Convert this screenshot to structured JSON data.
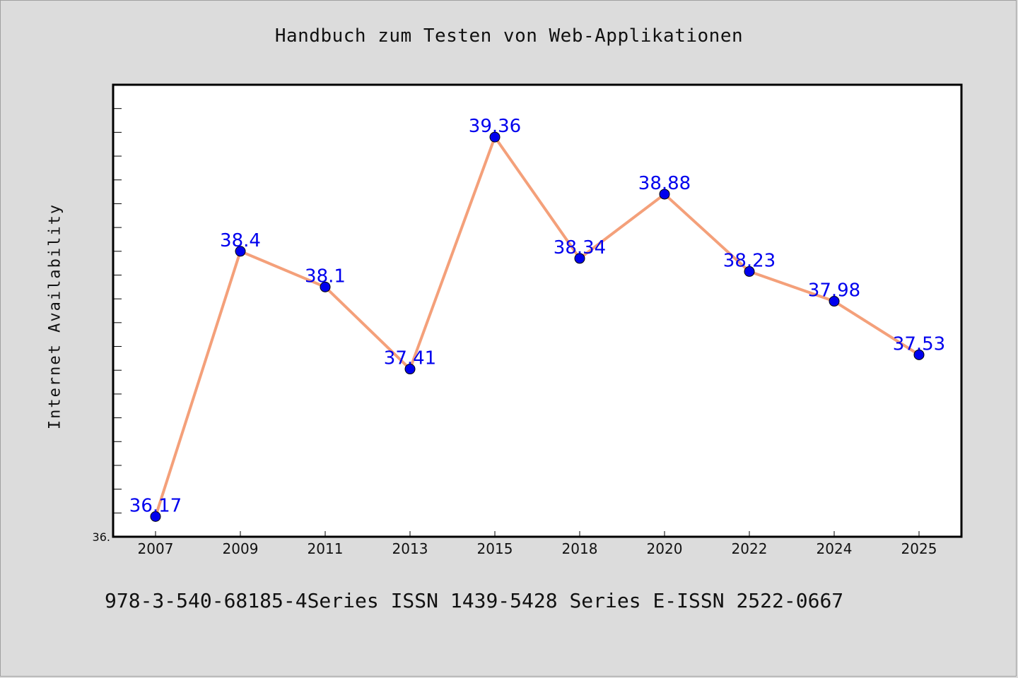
{
  "chart_data": {
    "type": "line",
    "title": "Handbuch zum Testen von Web-Applikationen",
    "xlabel": "",
    "ylabel": "Internet Availability",
    "categories": [
      "2007",
      "2009",
      "2011",
      "2013",
      "2015",
      "2018",
      "2020",
      "2022",
      "2024",
      "2025"
    ],
    "series": [
      {
        "values": [
          36.17,
          38.4,
          38.1,
          37.41,
          39.36,
          38.34,
          38.88,
          38.23,
          37.98,
          37.53
        ],
        "labels": [
          "36.17",
          "38.4",
          "38.1",
          "37.41",
          "39.36",
          "38.34",
          "38.88",
          "38.23",
          "37.98",
          "37.53"
        ]
      }
    ],
    "ylim": [
      36.0,
      39.8
    ],
    "y_tick_label": "36.",
    "grid": false,
    "line_color": "#f4a07a",
    "marker_color": "#0000ee",
    "label_color": "#0000ee"
  },
  "footer": {
    "text": "978-3-540-68185-4Series ISSN 1439-5428 Series E-ISSN 2522-0667"
  }
}
